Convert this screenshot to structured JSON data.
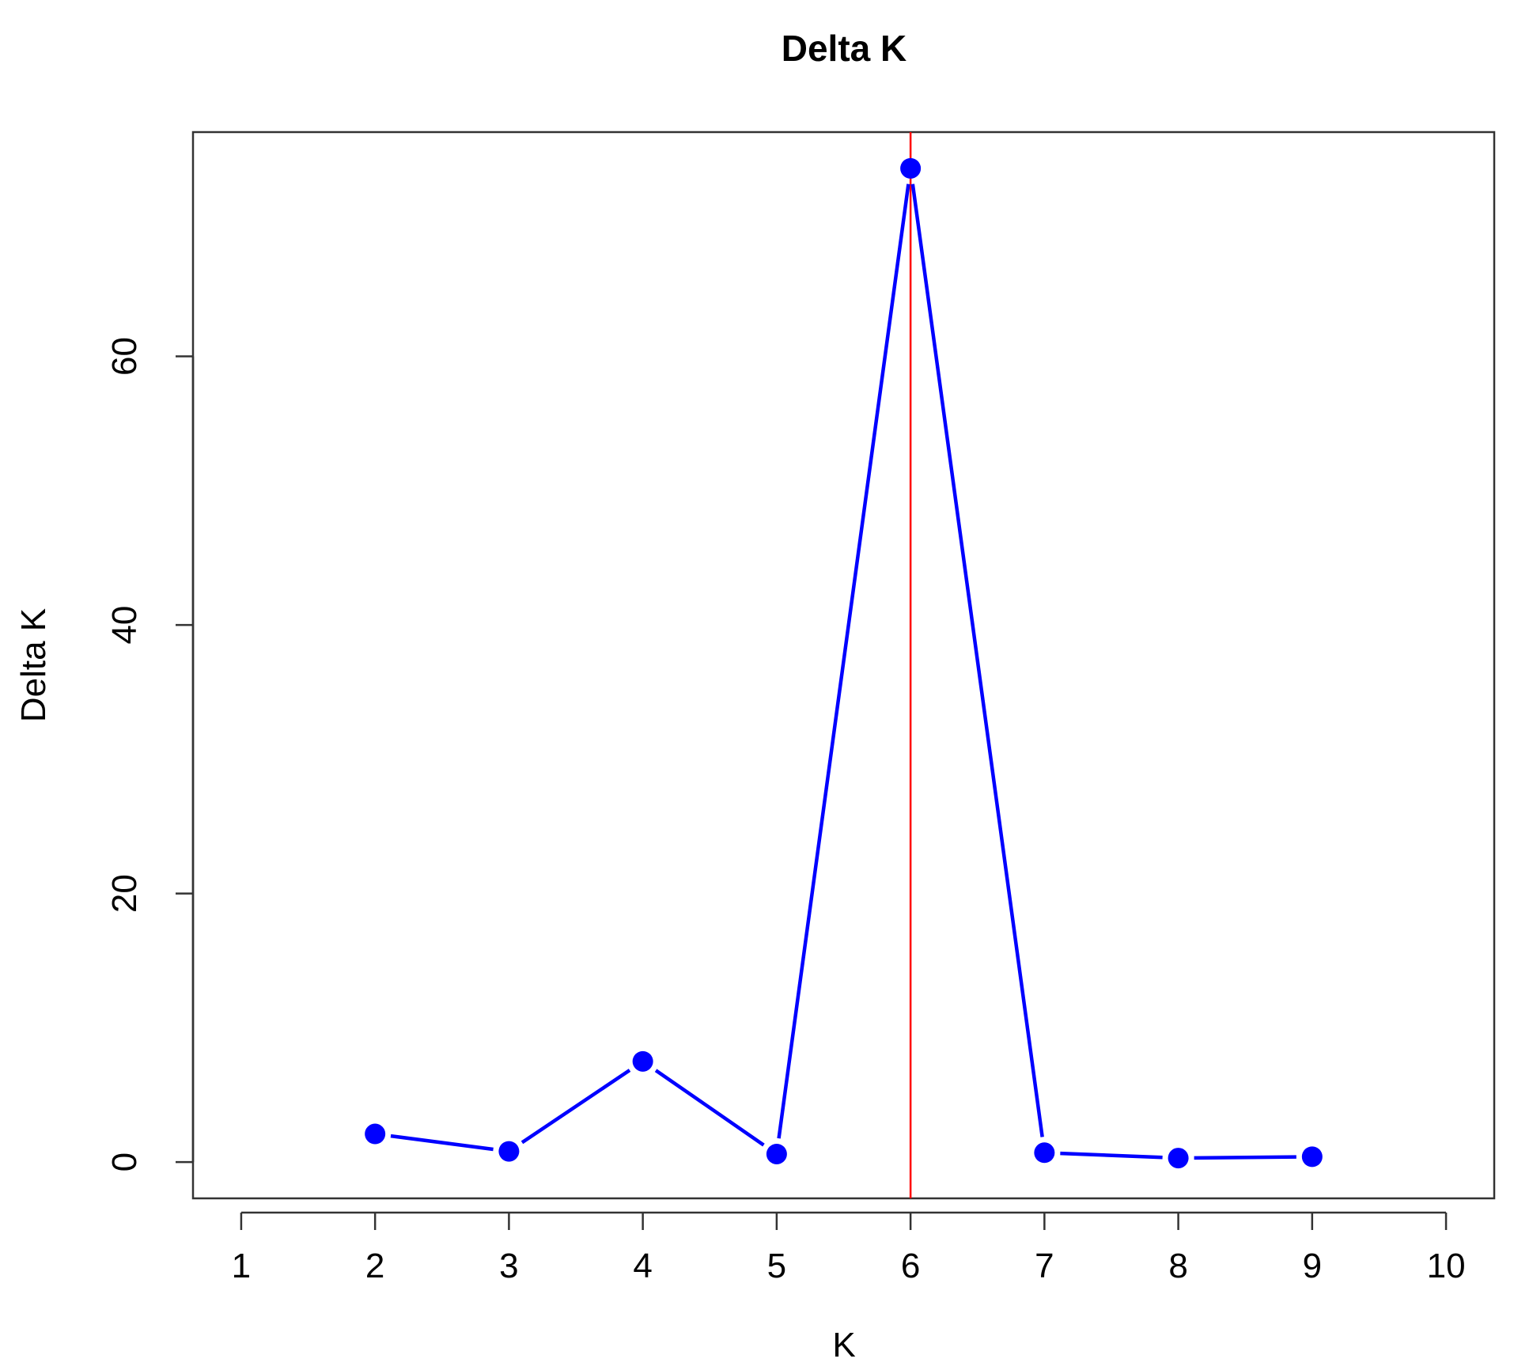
{
  "chart_data": {
    "type": "line",
    "title": "Delta K",
    "xlabel": "K",
    "ylabel": "Delta K",
    "x_ticks": [
      "1",
      "2",
      "3",
      "4",
      "5",
      "6",
      "7",
      "8",
      "9",
      "10"
    ],
    "y_ticks": [
      "0",
      "20",
      "40",
      "60"
    ],
    "xlim": [
      0.64,
      10.36
    ],
    "ylim": [
      -2.7,
      76.7
    ],
    "grid": false,
    "series": [
      {
        "x": [
          2,
          3,
          4,
          5,
          6,
          7,
          8,
          9
        ],
        "values": [
          2.1,
          0.8,
          7.5,
          0.6,
          74.0,
          0.7,
          0.3,
          0.4
        ],
        "color": "#0000ff"
      }
    ],
    "reference_line": {
      "x": 6,
      "color": "#ff0000"
    }
  }
}
